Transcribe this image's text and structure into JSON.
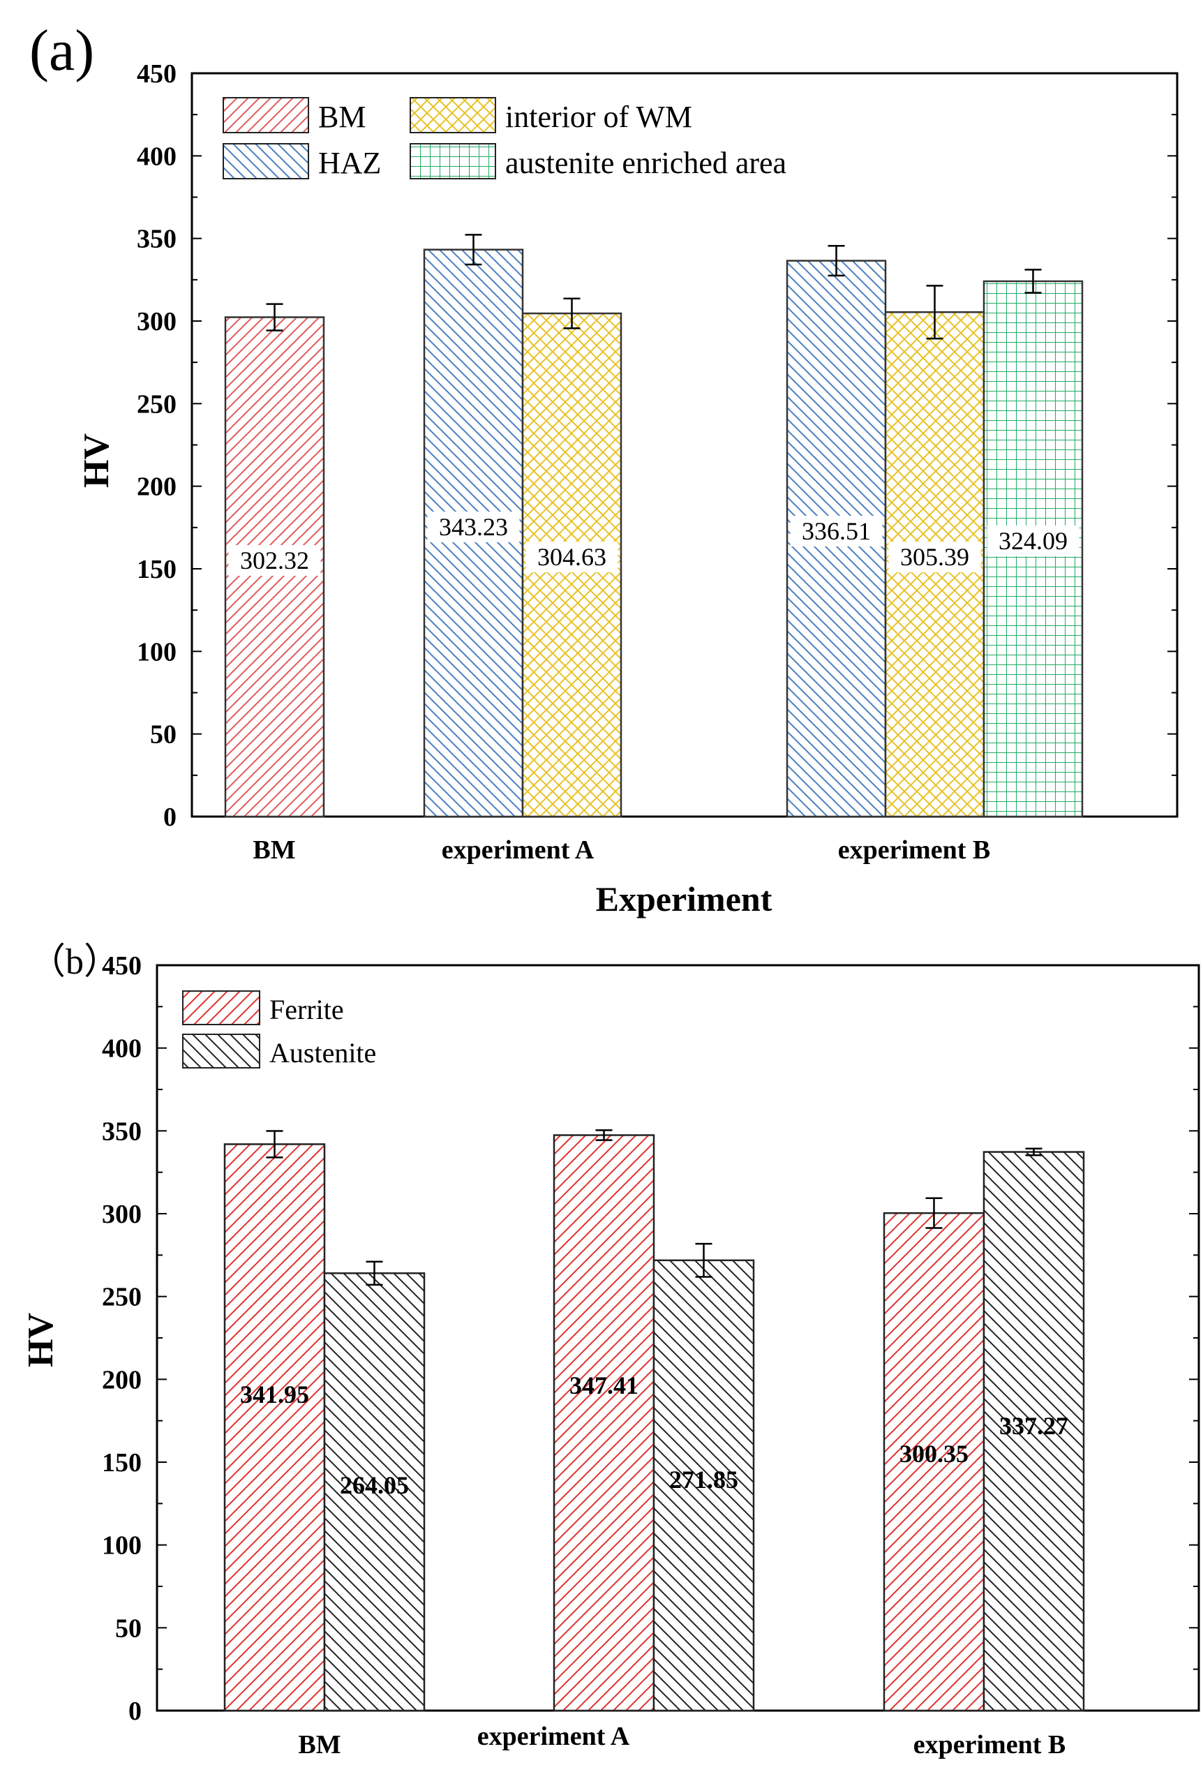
{
  "chart_data": [
    {
      "panel_label": "(a)",
      "type": "bar",
      "xlabel": "Experiment",
      "ylabel": "HV",
      "ylim": [
        0,
        450
      ],
      "yticks": [
        0,
        50,
        100,
        150,
        200,
        250,
        300,
        350,
        400,
        450
      ],
      "ytick_labels": [
        "0",
        "50",
        "100",
        "150",
        "200",
        "250",
        "300",
        "350",
        "400",
        "450"
      ],
      "categories": [
        "BM",
        "experiment A",
        "experiment B"
      ],
      "legend": [
        {
          "name": "BM",
          "color": "#e05a5a",
          "pattern": "fwd"
        },
        {
          "name": "interior of WM",
          "color": "#e8c227",
          "pattern": "cross"
        },
        {
          "name": "HAZ",
          "color": "#4a7fc0",
          "pattern": "back"
        },
        {
          "name": "austenite enriched area",
          "color": "#22aa66",
          "pattern": "grid"
        }
      ],
      "bars": [
        {
          "category": "BM",
          "series": "BM",
          "value": 302.32,
          "error": 8,
          "label": "302.32"
        },
        {
          "category": "experiment A",
          "series": "HAZ",
          "value": 343.23,
          "error": 9,
          "label": "343.23"
        },
        {
          "category": "experiment A",
          "series": "interior of WM",
          "value": 304.63,
          "error": 9,
          "label": "304.63"
        },
        {
          "category": "experiment B",
          "series": "HAZ",
          "value": 336.51,
          "error": 9,
          "label": "336.51"
        },
        {
          "category": "experiment B",
          "series": "interior of WM",
          "value": 305.39,
          "error": 16,
          "label": "305.39"
        },
        {
          "category": "experiment B",
          "series": "austenite enriched area",
          "value": 324.09,
          "error": 7,
          "label": "324.09"
        }
      ]
    },
    {
      "panel_label": "（b）",
      "type": "bar",
      "xlabel": "",
      "ylabel": "HV",
      "ylim": [
        0,
        450
      ],
      "yticks": [
        0,
        50,
        100,
        150,
        200,
        250,
        300,
        350,
        400,
        450
      ],
      "ytick_labels": [
        "0",
        "50",
        "100",
        "150",
        "200",
        "250",
        "300",
        "350",
        "400",
        "450"
      ],
      "categories": [
        "BM",
        "experiment A",
        "experiment B"
      ],
      "legend": [
        {
          "name": "Ferrite",
          "color": "#e03030",
          "pattern": "fwd"
        },
        {
          "name": "Austenite",
          "color": "#222222",
          "pattern": "back"
        }
      ],
      "series": [
        {
          "name": "Ferrite",
          "values": [
            341.95,
            347.41,
            300.35
          ],
          "errors": [
            8,
            3,
            9
          ],
          "labels": [
            "341.95",
            "347.41",
            "300.35"
          ]
        },
        {
          "name": "Austenite",
          "values": [
            264.05,
            271.85,
            337.27
          ],
          "errors": [
            7,
            10,
            2
          ],
          "labels": [
            "264.05",
            "271.85",
            "337.27"
          ]
        }
      ]
    }
  ]
}
